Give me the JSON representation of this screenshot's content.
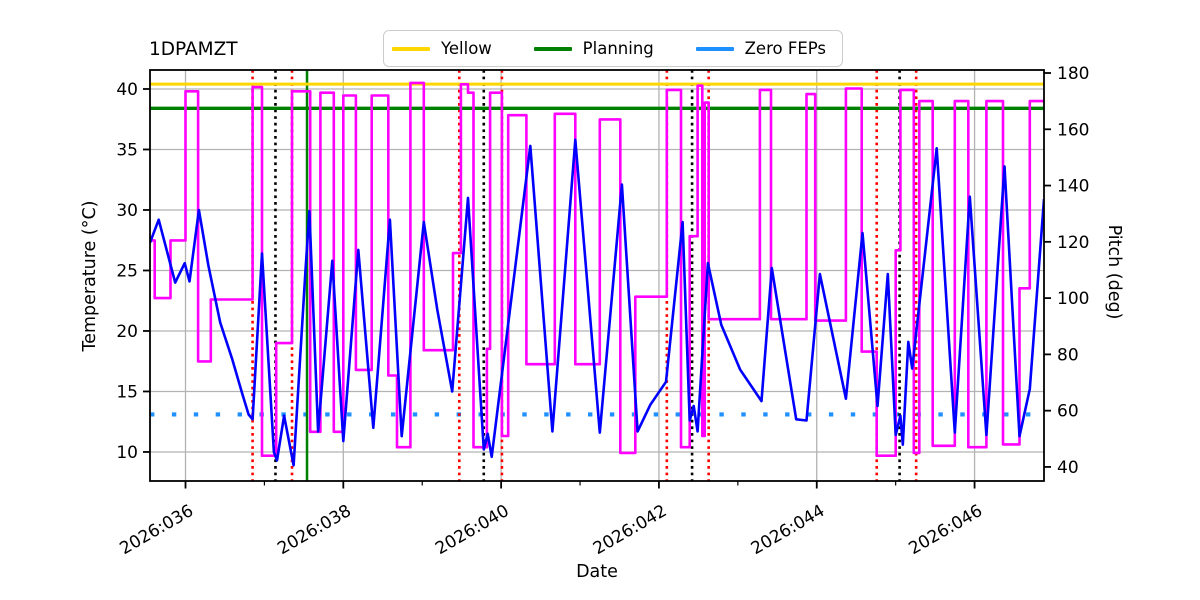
{
  "chart_data": {
    "type": "line",
    "title": "1DPAMZT",
    "xlabel": "Date",
    "ylabel": "Temperature (°C)",
    "y2label": "Pitch (deg)",
    "grid": true,
    "legend_position": "top-center",
    "xlim_days": [
      35.55,
      46.88
    ],
    "ylim": [
      7.6,
      41.57
    ],
    "y2lim": [
      35,
      181.07
    ],
    "x_major_ticks": [
      {
        "day": 36,
        "label": "2026:036"
      },
      {
        "day": 38,
        "label": "2026:038"
      },
      {
        "day": 40,
        "label": "2026:040"
      },
      {
        "day": 42,
        "label": "2026:042"
      },
      {
        "day": 44,
        "label": "2026:044"
      },
      {
        "day": 46,
        "label": "2026:046"
      }
    ],
    "x_minor_ticks": [
      37,
      39,
      41,
      43,
      45
    ],
    "yticks": [
      10,
      15,
      20,
      25,
      30,
      35,
      40
    ],
    "y2ticks": [
      40,
      60,
      80,
      100,
      120,
      140,
      160,
      180
    ],
    "colors": {
      "temperature": "#0000ff",
      "pitch": "#ff00ff",
      "yellow_limit": "#ffd700",
      "planning_limit": "#008000",
      "zero_feps": "#1e90ff",
      "grid": "#b3b3b3",
      "red_vline": "#ff0000",
      "black_vline": "#000000",
      "green_vline": "#008000"
    },
    "legend": [
      {
        "label": "Yellow",
        "color": "#ffd700"
      },
      {
        "label": "Planning",
        "color": "#008000"
      },
      {
        "label": "Zero FEPs",
        "color": "#1e90ff"
      }
    ],
    "hlines": [
      {
        "name": "yellow-limit",
        "y": 40.4,
        "axis": "left",
        "color": "#ffd700",
        "style": "solid",
        "width": 3
      },
      {
        "name": "planning-limit",
        "y": 38.4,
        "axis": "left",
        "color": "#008000",
        "style": "solid",
        "width": 3.4
      },
      {
        "name": "zero-feps",
        "y": 13.1,
        "axis": "left",
        "color": "#1e90ff",
        "style": "dotted",
        "width": 4.2
      }
    ],
    "vlines": [
      {
        "day": 36.85,
        "color": "#ff0000",
        "style": "dotted"
      },
      {
        "day": 37.14,
        "color": "#000000",
        "style": "dotted"
      },
      {
        "day": 37.35,
        "color": "#ff0000",
        "style": "dotted"
      },
      {
        "day": 37.54,
        "color": "#008000",
        "style": "solid"
      },
      {
        "day": 39.47,
        "color": "#ff0000",
        "style": "dotted"
      },
      {
        "day": 39.78,
        "color": "#000000",
        "style": "dotted"
      },
      {
        "day": 40.01,
        "color": "#ff0000",
        "style": "dotted"
      },
      {
        "day": 42.1,
        "color": "#ff0000",
        "style": "dotted"
      },
      {
        "day": 42.42,
        "color": "#000000",
        "style": "dotted"
      },
      {
        "day": 42.63,
        "color": "#ff0000",
        "style": "dotted"
      },
      {
        "day": 44.76,
        "color": "#ff0000",
        "style": "dotted"
      },
      {
        "day": 45.05,
        "color": "#000000",
        "style": "dotted"
      },
      {
        "day": 45.26,
        "color": "#ff0000",
        "style": "dotted"
      }
    ],
    "series": [
      {
        "name": "temperature",
        "axis": "left",
        "color": "#0000ff",
        "mode": "linear",
        "width": 2.6,
        "points": [
          [
            35.55,
            27.3
          ],
          [
            35.66,
            29.2
          ],
          [
            35.87,
            24.0
          ],
          [
            35.99,
            25.6
          ],
          [
            36.05,
            24.1
          ],
          [
            36.17,
            30.0
          ],
          [
            36.29,
            25.4
          ],
          [
            36.44,
            20.7
          ],
          [
            36.59,
            17.7
          ],
          [
            36.72,
            14.8
          ],
          [
            36.8,
            13.1
          ],
          [
            36.85,
            12.7
          ],
          [
            36.97,
            26.4
          ],
          [
            37.12,
            10.0
          ],
          [
            37.16,
            9.3
          ],
          [
            37.25,
            13.0
          ],
          [
            37.37,
            8.9
          ],
          [
            37.52,
            24.9
          ],
          [
            37.57,
            29.9
          ],
          [
            37.68,
            11.7
          ],
          [
            37.86,
            25.8
          ],
          [
            38.0,
            10.9
          ],
          [
            38.19,
            26.7
          ],
          [
            38.38,
            12.0
          ],
          [
            38.59,
            29.2
          ],
          [
            38.74,
            11.3
          ],
          [
            39.02,
            29.0
          ],
          [
            39.19,
            21.8
          ],
          [
            39.38,
            15.0
          ],
          [
            39.58,
            31.0
          ],
          [
            39.78,
            10.2
          ],
          [
            39.83,
            11.5
          ],
          [
            39.88,
            9.6
          ],
          [
            40.37,
            35.3
          ],
          [
            40.65,
            11.7
          ],
          [
            40.94,
            35.8
          ],
          [
            41.25,
            11.6
          ],
          [
            41.53,
            32.1
          ],
          [
            41.73,
            11.7
          ],
          [
            41.89,
            13.9
          ],
          [
            42.09,
            15.8
          ],
          [
            42.3,
            29.0
          ],
          [
            42.39,
            12.6
          ],
          [
            42.44,
            13.8
          ],
          [
            42.49,
            11.7
          ],
          [
            42.62,
            25.6
          ],
          [
            42.79,
            20.5
          ],
          [
            43.03,
            16.8
          ],
          [
            43.3,
            14.2
          ],
          [
            43.43,
            25.2
          ],
          [
            43.74,
            12.7
          ],
          [
            43.87,
            12.6
          ],
          [
            44.04,
            24.7
          ],
          [
            44.37,
            14.4
          ],
          [
            44.58,
            28.1
          ],
          [
            44.77,
            13.8
          ],
          [
            44.9,
            24.7
          ],
          [
            45.0,
            11.4
          ],
          [
            45.06,
            13.0
          ],
          [
            45.09,
            10.6
          ],
          [
            45.16,
            19.1
          ],
          [
            45.21,
            16.9
          ],
          [
            45.52,
            35.1
          ],
          [
            45.75,
            11.6
          ],
          [
            45.94,
            31.1
          ],
          [
            46.15,
            11.4
          ],
          [
            46.38,
            33.6
          ],
          [
            46.57,
            11.3
          ],
          [
            46.7,
            15.2
          ],
          [
            46.88,
            30.9
          ]
        ]
      },
      {
        "name": "pitch",
        "axis": "right",
        "color": "#ff00ff",
        "mode": "step-post",
        "width": 2.6,
        "points": [
          [
            35.55,
            120.5
          ],
          [
            35.61,
            100
          ],
          [
            35.81,
            120.5
          ],
          [
            36.0,
            173.5
          ],
          [
            36.16,
            77.5
          ],
          [
            36.32,
            99.5
          ],
          [
            36.85,
            175
          ],
          [
            36.97,
            44
          ],
          [
            37.15,
            84
          ],
          [
            37.35,
            173.5
          ],
          [
            37.58,
            52.5
          ],
          [
            37.71,
            173
          ],
          [
            37.88,
            52.5
          ],
          [
            38.0,
            172
          ],
          [
            38.16,
            74.5
          ],
          [
            38.36,
            172
          ],
          [
            38.57,
            72.5
          ],
          [
            38.68,
            47
          ],
          [
            38.85,
            176.5
          ],
          [
            39.02,
            81.5
          ],
          [
            39.39,
            116
          ],
          [
            39.49,
            176
          ],
          [
            39.58,
            173
          ],
          [
            39.65,
            47
          ],
          [
            39.82,
            82
          ],
          [
            39.86,
            173
          ],
          [
            40.01,
            51
          ],
          [
            40.09,
            165
          ],
          [
            40.32,
            76.5
          ],
          [
            40.68,
            165.5
          ],
          [
            40.94,
            76.5
          ],
          [
            41.25,
            163.5
          ],
          [
            41.51,
            45
          ],
          [
            41.7,
            100.5
          ],
          [
            42.1,
            174
          ],
          [
            42.28,
            47
          ],
          [
            42.39,
            122
          ],
          [
            42.49,
            175.5
          ],
          [
            42.55,
            51
          ],
          [
            42.58,
            169.5
          ],
          [
            42.63,
            92.5
          ],
          [
            43.28,
            174
          ],
          [
            43.42,
            92.5
          ],
          [
            43.87,
            172.5
          ],
          [
            43.98,
            92
          ],
          [
            44.37,
            174.5
          ],
          [
            44.57,
            81
          ],
          [
            44.76,
            44
          ],
          [
            45.0,
            117
          ],
          [
            45.06,
            174
          ],
          [
            45.23,
            45
          ],
          [
            45.3,
            170
          ],
          [
            45.47,
            47.5
          ],
          [
            45.75,
            170
          ],
          [
            45.92,
            47
          ],
          [
            46.15,
            170
          ],
          [
            46.36,
            48
          ],
          [
            46.57,
            103.5
          ],
          [
            46.7,
            170
          ],
          [
            46.88,
            170
          ]
        ]
      }
    ]
  }
}
